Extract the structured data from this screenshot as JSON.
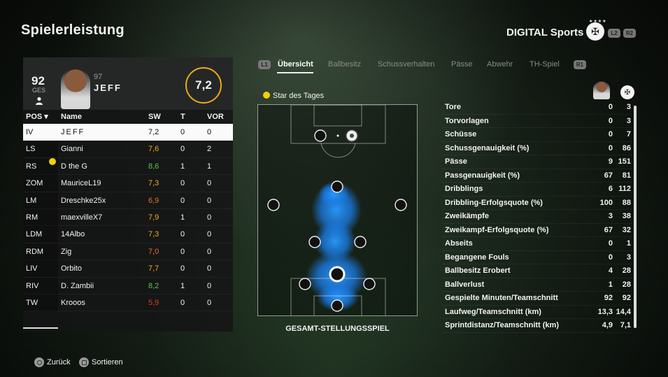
{
  "header": {
    "title": "Spielerleistung",
    "team_name": "DIGITAL Sports",
    "l2": "L2",
    "r2": "R2",
    "stars": "★★★★"
  },
  "player": {
    "overall": "92",
    "overall_label": "GES",
    "number": "97",
    "name": "JEFF",
    "rating": "7,2"
  },
  "table": {
    "headers": {
      "pos": "POS ▾",
      "name": "Name",
      "sw": "SW",
      "t": "T",
      "vor": "VOR"
    },
    "rows": [
      {
        "pos": "IV",
        "name": "JEFF",
        "sw": "7,2",
        "t": "0",
        "vor": "0",
        "color": "#111111",
        "selected": true,
        "star": false
      },
      {
        "pos": "LS",
        "name": "Gianni",
        "sw": "7,6",
        "t": "0",
        "vor": "2",
        "color": "#f0a81c",
        "selected": false,
        "star": false
      },
      {
        "pos": "RS",
        "name": "D the G",
        "sw": "8,6",
        "t": "1",
        "vor": "1",
        "color": "#5fc24c",
        "selected": false,
        "star": true
      },
      {
        "pos": "ZOM",
        "name": "MauriceL19",
        "sw": "7,3",
        "t": "0",
        "vor": "0",
        "color": "#f0a81c",
        "selected": false,
        "star": false
      },
      {
        "pos": "LM",
        "name": "Dreschke25x",
        "sw": "6,9",
        "t": "0",
        "vor": "0",
        "color": "#e8701e",
        "selected": false,
        "star": false
      },
      {
        "pos": "RM",
        "name": "maexvilleX7",
        "sw": "7,9",
        "t": "1",
        "vor": "0",
        "color": "#f0a81c",
        "selected": false,
        "star": false
      },
      {
        "pos": "LDM",
        "name": "14Albo",
        "sw": "7,3",
        "t": "0",
        "vor": "0",
        "color": "#f0a81c",
        "selected": false,
        "star": false
      },
      {
        "pos": "RDM",
        "name": "Zig",
        "sw": "7,0",
        "t": "0",
        "vor": "0",
        "color": "#e8701e",
        "selected": false,
        "star": false
      },
      {
        "pos": "LIV",
        "name": "Orbito",
        "sw": "7,7",
        "t": "0",
        "vor": "0",
        "color": "#f0a81c",
        "selected": false,
        "star": false
      },
      {
        "pos": "RIV",
        "name": "D. Zambii",
        "sw": "8,2",
        "t": "1",
        "vor": "0",
        "color": "#5fc24c",
        "selected": false,
        "star": false
      },
      {
        "pos": "TW",
        "name": "Krooos",
        "sw": "5,9",
        "t": "0",
        "vor": "0",
        "color": "#e5332a",
        "selected": false,
        "star": false
      }
    ]
  },
  "tabs": {
    "l1": "L1",
    "r1": "R1",
    "items": [
      "Übersicht",
      "Ballbesitz",
      "Schussverhalten",
      "Pässe",
      "Abwehr",
      "TH-Spiel"
    ],
    "active": 0
  },
  "pitch": {
    "star_label": "Star des Tages",
    "caption": "GESAMT-STELLUNGSSPIEL"
  },
  "stats": [
    {
      "label": "Tore",
      "player": "0",
      "team": "3"
    },
    {
      "label": "Torvorlagen",
      "player": "0",
      "team": "3"
    },
    {
      "label": "Schüsse",
      "player": "0",
      "team": "7"
    },
    {
      "label": "Schussgenauigkeit (%)",
      "player": "0",
      "team": "86"
    },
    {
      "label": "Pässe",
      "player": "9",
      "team": "151"
    },
    {
      "label": "Passgenauigkeit (%)",
      "player": "67",
      "team": "81"
    },
    {
      "label": "Dribblings",
      "player": "6",
      "team": "112"
    },
    {
      "label": "Dribbling-Erfolgsquote (%)",
      "player": "100",
      "team": "88"
    },
    {
      "label": "Zweikämpfe",
      "player": "3",
      "team": "38"
    },
    {
      "label": "Zweikampf-Erfolgsquote (%)",
      "player": "67",
      "team": "32"
    },
    {
      "label": "Abseits",
      "player": "0",
      "team": "1"
    },
    {
      "label": "Begangene Fouls",
      "player": "0",
      "team": "3"
    },
    {
      "label": "Ballbesitz Erobert",
      "player": "4",
      "team": "28"
    },
    {
      "label": "Ballverlust",
      "player": "1",
      "team": "28"
    },
    {
      "label": "Gespielte Minuten/Teamschnitt",
      "player": "92",
      "team": "92"
    },
    {
      "label": "Laufweg/Teamschnitt (km)",
      "player": "13,3",
      "team": "14,4"
    },
    {
      "label": "Sprintdistanz/Teamschnitt (km)",
      "player": "4,9",
      "team": "7,1"
    }
  ],
  "footer": {
    "back": "Zurück",
    "sort": "Sortieren"
  }
}
